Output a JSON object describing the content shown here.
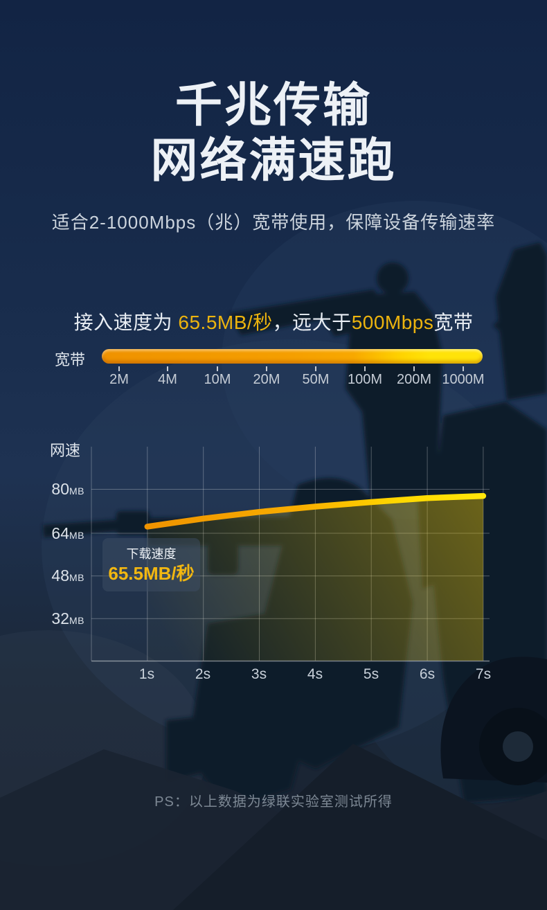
{
  "hero": {
    "title_line1": "千兆传输",
    "title_line2": "网络满速跑",
    "subtitle": "适合2-1000Mbps（兆）宽带使用，保障设备传输速率"
  },
  "claim": {
    "full_text": "接入速度为 65.5MB/秒，远大于500Mbps宽带",
    "parts": [
      {
        "text": "接入速度为 ",
        "color": "#e9eef4"
      },
      {
        "text": "65.5MB/秒",
        "color": "#edb40e"
      },
      {
        "text": "，远大于",
        "color": "#e9eef4"
      },
      {
        "text": "500Mbps",
        "color": "#edb40e"
      },
      {
        "text": "宽带",
        "color": "#e9eef4"
      }
    ]
  },
  "bandwidth_bar": {
    "label": "宽带",
    "tick_labels": [
      "2M",
      "4M",
      "10M",
      "20M",
      "50M",
      "100M",
      "200M",
      "1000M"
    ],
    "bar_colors": {
      "start": "#ef9200",
      "end": "#ffe30a"
    }
  },
  "chart_data": {
    "type": "line",
    "axis_label_y": "网速",
    "x": [
      1,
      2,
      3,
      4,
      5,
      6,
      7
    ],
    "x_unit": "s",
    "x_tick_labels": [
      "1s",
      "2s",
      "3s",
      "4s",
      "5s",
      "6s",
      "7s"
    ],
    "y_ticks": [
      {
        "num": "80",
        "unit": "MB",
        "value": 80
      },
      {
        "num": "64",
        "unit": "MB",
        "value": 64
      },
      {
        "num": "48",
        "unit": "MB",
        "value": 48
      },
      {
        "num": "32",
        "unit": "MB",
        "value": 32
      }
    ],
    "ylim": [
      16,
      96
    ],
    "grid": true,
    "legend_position": "none",
    "series": [
      {
        "name": "下载速度",
        "values": [
          66.5,
          69.5,
          72,
          74,
          75.7,
          77.2,
          78
        ],
        "color_start": "#f09500",
        "color_end": "#ffe60a"
      }
    ],
    "tooltip": {
      "label": "下载速度",
      "value": "65.5MB/秒"
    }
  },
  "footer": {
    "note": "PS：以上数据为绿联实验室测试所得"
  },
  "colors": {
    "background_top": "#132645",
    "background_bottom": "#1a2330",
    "accent_yellow": "#edb40e",
    "bar_orange": "#f59b00",
    "bar_yellow": "#ffe000",
    "text_primary": "#edf1f6",
    "text_secondary": "#c9d1da",
    "grid_line": "rgba(255,255,255,0.28)"
  }
}
